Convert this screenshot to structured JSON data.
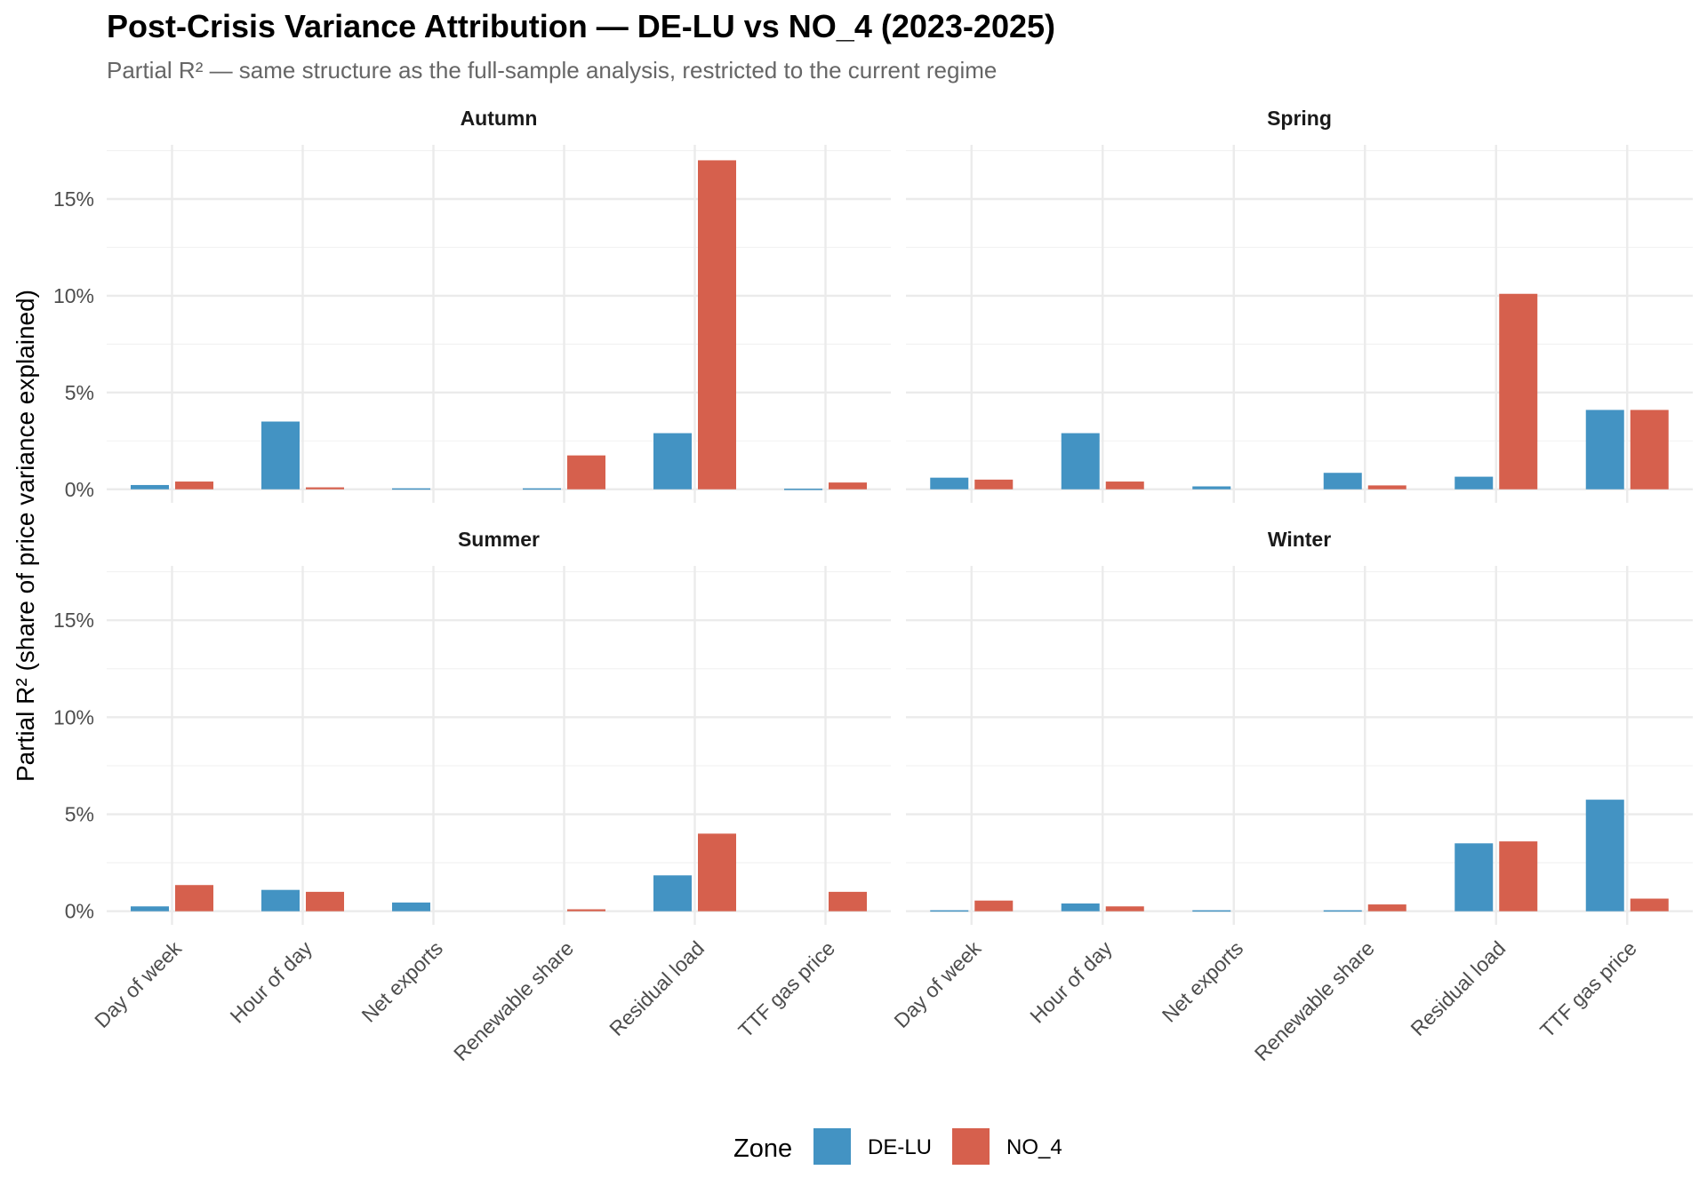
{
  "chart_data": {
    "type": "bar",
    "title": "Post-Crisis Variance Attribution — DE-LU vs NO_4 (2023-2025)",
    "subtitle": "Partial R² — same structure as the full-sample analysis, restricted to the current regime",
    "xlabel": "",
    "ylabel": "Partial R² (share of price variance explained)",
    "ylim": [
      -0.7,
      17.8
    ],
    "yticks": [
      0,
      5,
      10,
      15
    ],
    "ytick_labels": [
      "0%",
      "5%",
      "10%",
      "15%"
    ],
    "grid": true,
    "categories": [
      "Day of week",
      "Hour of day",
      "Net exports",
      "Renewable share",
      "Residual load",
      "TTF gas price"
    ],
    "legend": {
      "title": "Zone",
      "placement": "bottom",
      "entries": [
        "DE-LU",
        "NO_4"
      ]
    },
    "colors": {
      "DE-LU": "#4393c3",
      "NO_4": "#d6604d"
    },
    "panels": [
      {
        "name": "Autumn",
        "series": [
          {
            "name": "DE-LU",
            "values": [
              0.22,
              3.5,
              0.05,
              0.05,
              2.9,
              0.03
            ]
          },
          {
            "name": "NO_4",
            "values": [
              0.4,
              0.1,
              0,
              1.75,
              17.0,
              0.35
            ]
          }
        ]
      },
      {
        "name": "Spring",
        "series": [
          {
            "name": "DE-LU",
            "values": [
              0.6,
              2.9,
              0.15,
              0.85,
              0.65,
              4.1
            ]
          },
          {
            "name": "NO_4",
            "values": [
              0.5,
              0.4,
              0,
              0.2,
              10.1,
              4.1
            ]
          }
        ]
      },
      {
        "name": "Summer",
        "series": [
          {
            "name": "DE-LU",
            "values": [
              0.25,
              1.1,
              0.45,
              0,
              1.85,
              0
            ]
          },
          {
            "name": "NO_4",
            "values": [
              1.35,
              1.0,
              0,
              0.1,
              4.0,
              1.0
            ]
          }
        ]
      },
      {
        "name": "Winter",
        "series": [
          {
            "name": "DE-LU",
            "values": [
              0.05,
              0.4,
              0.05,
              0.05,
              3.5,
              5.75
            ]
          },
          {
            "name": "NO_4",
            "values": [
              0.55,
              0.25,
              0,
              0.35,
              3.6,
              0.65
            ]
          }
        ]
      }
    ]
  }
}
